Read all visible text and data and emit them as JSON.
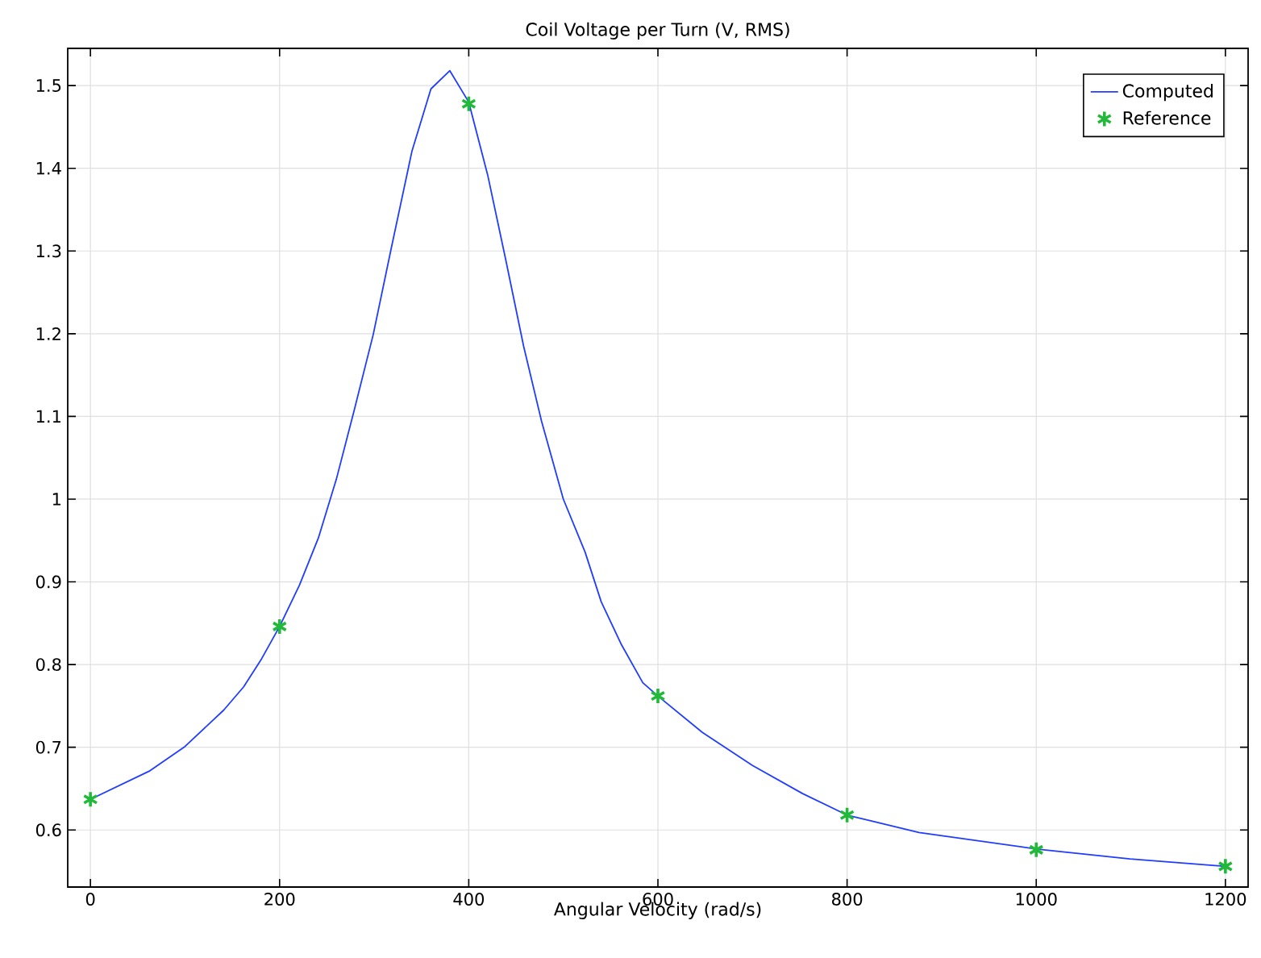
{
  "chart_data": {
    "type": "line",
    "title": "Coil Voltage per Turn (V, RMS)",
    "xlabel": "Angular Velocity (rad/s)",
    "series": [
      {
        "name": "Computed",
        "color": "#1f3cff",
        "marker": "none",
        "line_style": "solid",
        "x": [
          0,
          62,
          100,
          141,
          162,
          181,
          200,
          221,
          241,
          260,
          279,
          299,
          318,
          340,
          360,
          380,
          400,
          420,
          439,
          458,
          477,
          500,
          523,
          540,
          561,
          584,
          600,
          647,
          700,
          753,
          800,
          876,
          1000,
          1099,
          1200
        ],
        "values": [
          0.637,
          0.671,
          0.701,
          0.745,
          0.773,
          0.807,
          0.846,
          0.896,
          0.953,
          1.024,
          1.108,
          1.199,
          1.303,
          1.421,
          1.496,
          1.518,
          1.48,
          1.392,
          1.29,
          1.185,
          1.094,
          1.0,
          0.936,
          0.876,
          0.825,
          0.778,
          0.762,
          0.718,
          0.678,
          0.644,
          0.618,
          0.597,
          0.577,
          0.565,
          0.556
        ]
      },
      {
        "name": "Reference",
        "type": "scatter",
        "color": "#22b83a",
        "marker": "cross",
        "x": [
          0,
          200,
          400,
          600,
          800,
          1000,
          1200
        ],
        "values": [
          0.637,
          0.846,
          1.478,
          0.762,
          0.618,
          0.576,
          0.556
        ]
      }
    ],
    "xlim": [
      -24,
      1224
    ],
    "ylim": [
      0.531,
      1.545
    ],
    "xticks": [
      0,
      200,
      400,
      600,
      800,
      1000,
      1200
    ],
    "yticks": [
      0.6,
      0.7,
      0.8,
      0.9,
      1,
      1.1,
      1.2,
      1.3,
      1.4,
      1.5
    ],
    "grid": true,
    "legend": "top right"
  }
}
